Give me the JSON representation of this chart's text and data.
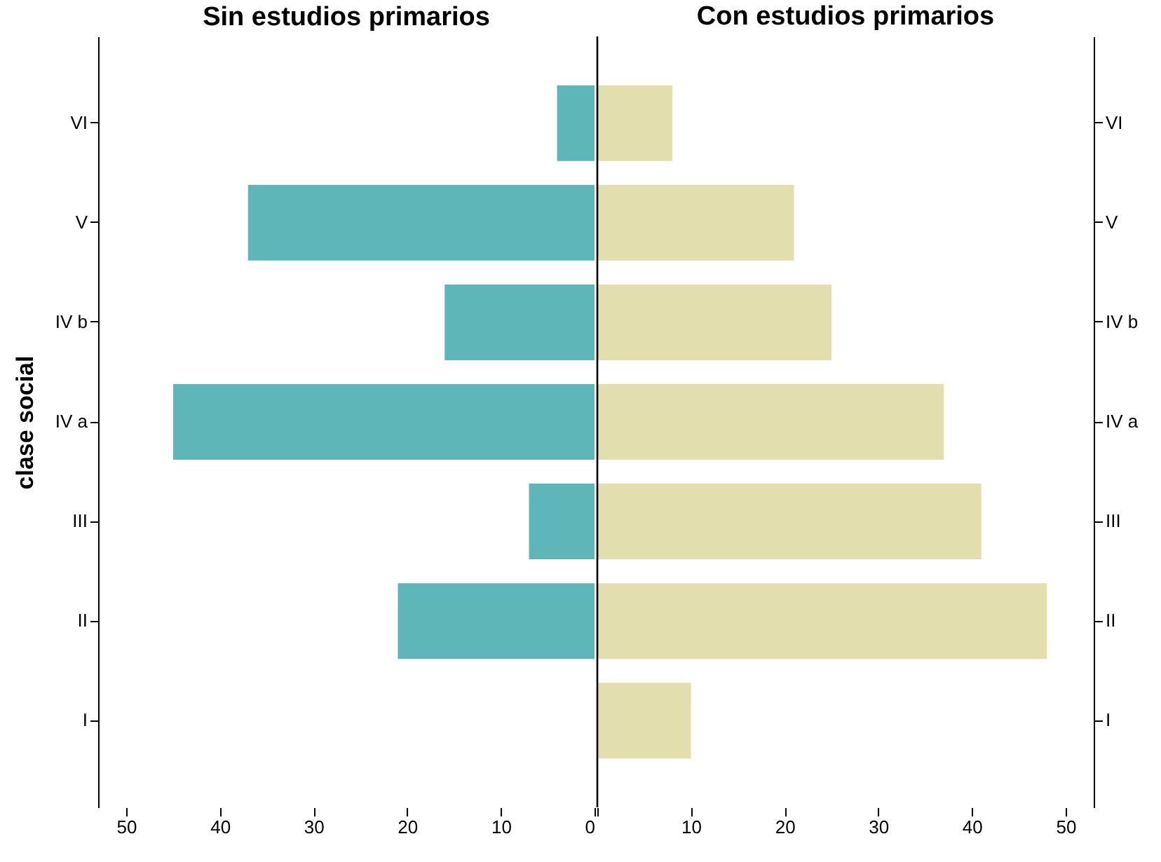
{
  "chart_data": [
    {
      "type": "bar",
      "orientation": "horizontal",
      "title": "Sin estudios primarios",
      "ylabel": "clase social",
      "categories": [
        "VI",
        "V",
        "IV b",
        "IV a",
        "III",
        "II",
        "I"
      ],
      "series": [
        {
          "color": "#5fb6b8",
          "values": [
            4,
            37,
            16,
            45,
            7,
            21,
            0
          ]
        }
      ],
      "xlim": [
        53,
        0
      ],
      "xticks": [
        50,
        40,
        30,
        20,
        10,
        0
      ],
      "grid": false,
      "legend": false
    },
    {
      "type": "bar",
      "orientation": "horizontal",
      "title": "Con estudios primarios",
      "categories": [
        "VI",
        "V",
        "IV b",
        "IV a",
        "III",
        "II",
        "I"
      ],
      "series": [
        {
          "color": "#e3dead",
          "values": [
            8,
            21,
            25,
            37,
            41,
            48,
            10
          ]
        }
      ],
      "xlim": [
        0,
        53
      ],
      "xticks": [
        {
          "value": 0,
          "label": null
        },
        10,
        20,
        30,
        40,
        50
      ],
      "grid": false,
      "legend": false,
      "ref_lines": [
        {
          "axis": "x",
          "value": 0,
          "color": "#000000"
        }
      ]
    }
  ]
}
